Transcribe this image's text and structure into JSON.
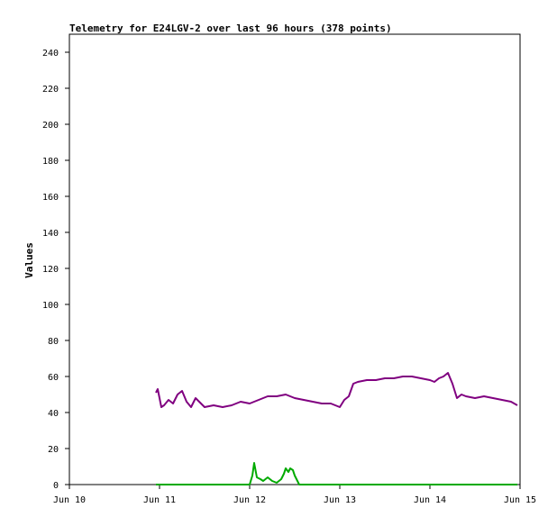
{
  "chart_data": {
    "type": "line",
    "title": "Telemetry for E24LGV-2 over last 96 hours (378 points)",
    "xlabel": "",
    "ylabel": "Values",
    "x_tick_labels": [
      "Jun 10",
      "Jun 11",
      "Jun 12",
      "Jun 13",
      "Jun 14",
      "Jun 15"
    ],
    "x_range_days": [
      10,
      15
    ],
    "ylim": [
      0,
      250
    ],
    "y_ticks": [
      0,
      20,
      40,
      60,
      80,
      100,
      120,
      140,
      160,
      180,
      200,
      220,
      240
    ],
    "grid": false,
    "legend": "none",
    "series": [
      {
        "color": "#800080",
        "x_day": [
          10.96,
          10.98,
          11.0,
          11.02,
          11.05,
          11.1,
          11.15,
          11.2,
          11.25,
          11.3,
          11.35,
          11.4,
          11.5,
          11.6,
          11.7,
          11.8,
          11.9,
          12.0,
          12.1,
          12.2,
          12.3,
          12.4,
          12.5,
          12.6,
          12.7,
          12.8,
          12.9,
          13.0,
          13.05,
          13.1,
          13.15,
          13.2,
          13.3,
          13.4,
          13.5,
          13.6,
          13.7,
          13.8,
          13.9,
          14.0,
          14.05,
          14.1,
          14.15,
          14.2,
          14.25,
          14.3,
          14.35,
          14.4,
          14.5,
          14.6,
          14.7,
          14.8,
          14.9,
          14.97
        ],
        "y": [
          51,
          53,
          48,
          43,
          44,
          47,
          45,
          50,
          52,
          46,
          43,
          48,
          43,
          44,
          43,
          44,
          46,
          45,
          47,
          49,
          49,
          50,
          48,
          47,
          46,
          45,
          45,
          43,
          47,
          49,
          56,
          57,
          58,
          58,
          59,
          59,
          60,
          60,
          59,
          58,
          57,
          59,
          60,
          62,
          56,
          48,
          50,
          49,
          48,
          49,
          48,
          47,
          46,
          44
        ]
      },
      {
        "color": "#00aa00",
        "x_day": [
          10.96,
          11.5,
          12.0,
          12.03,
          12.05,
          12.08,
          12.12,
          12.15,
          12.2,
          12.25,
          12.3,
          12.35,
          12.38,
          12.4,
          12.43,
          12.45,
          12.48,
          12.5,
          12.53,
          12.55,
          12.6,
          13.0,
          13.5,
          14.0,
          14.5,
          14.97
        ],
        "y": [
          0,
          0,
          0,
          5,
          12,
          4,
          3,
          2,
          4,
          2,
          1,
          3,
          6,
          9,
          7,
          9,
          8,
          5,
          2,
          0,
          0,
          0,
          0,
          0,
          0,
          0
        ]
      }
    ]
  }
}
